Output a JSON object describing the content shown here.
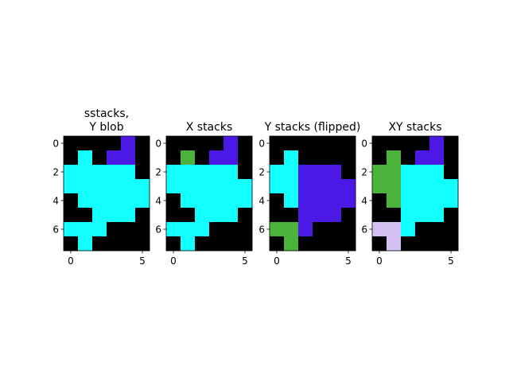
{
  "chart_data": [
    {
      "type": "heatmap",
      "title": "sstacks,\nY blob",
      "xticks": [
        0,
        5
      ],
      "yticks": [
        0,
        2,
        4,
        6
      ],
      "xlim": [
        -0.5,
        5.5
      ],
      "ylim": [
        7.5,
        -0.5
      ],
      "grid": [
        [
          0,
          0,
          0,
          0,
          2,
          0
        ],
        [
          0,
          1,
          0,
          2,
          2,
          0
        ],
        [
          1,
          1,
          1,
          1,
          1,
          0
        ],
        [
          1,
          1,
          1,
          1,
          1,
          1
        ],
        [
          0,
          1,
          1,
          1,
          1,
          1
        ],
        [
          0,
          0,
          1,
          1,
          1,
          0
        ],
        [
          1,
          1,
          1,
          0,
          0,
          0
        ],
        [
          0,
          1,
          0,
          0,
          0,
          0
        ]
      ]
    },
    {
      "type": "heatmap",
      "title": "X stacks",
      "xticks": [
        0,
        5
      ],
      "yticks": [
        0,
        2,
        4,
        6
      ],
      "xlim": [
        -0.5,
        5.5
      ],
      "ylim": [
        7.5,
        -0.5
      ],
      "grid": [
        [
          0,
          0,
          0,
          0,
          2,
          0
        ],
        [
          0,
          3,
          0,
          2,
          2,
          0
        ],
        [
          1,
          1,
          1,
          1,
          1,
          0
        ],
        [
          1,
          1,
          1,
          1,
          1,
          1
        ],
        [
          0,
          1,
          1,
          1,
          1,
          1
        ],
        [
          0,
          0,
          1,
          1,
          1,
          0
        ],
        [
          1,
          1,
          1,
          0,
          0,
          0
        ],
        [
          0,
          1,
          0,
          0,
          0,
          0
        ]
      ]
    },
    {
      "type": "heatmap",
      "title": "Y stacks (flipped)",
      "xticks": [
        0,
        5
      ],
      "yticks": [
        0,
        2,
        4,
        6
      ],
      "xlim": [
        -0.5,
        5.5
      ],
      "ylim": [
        7.5,
        -0.5
      ],
      "grid": [
        [
          0,
          0,
          0,
          0,
          0,
          0
        ],
        [
          0,
          1,
          0,
          0,
          0,
          0
        ],
        [
          1,
          1,
          2,
          2,
          2,
          0
        ],
        [
          1,
          1,
          2,
          2,
          2,
          2
        ],
        [
          0,
          1,
          2,
          2,
          2,
          2
        ],
        [
          0,
          0,
          2,
          2,
          2,
          0
        ],
        [
          3,
          3,
          2,
          0,
          0,
          0
        ],
        [
          0,
          3,
          0,
          0,
          0,
          0
        ]
      ]
    },
    {
      "type": "heatmap",
      "title": "XY stacks",
      "xticks": [
        0,
        5
      ],
      "yticks": [
        0,
        2,
        4,
        6
      ],
      "xlim": [
        -0.5,
        5.5
      ],
      "ylim": [
        7.5,
        -0.5
      ],
      "grid": [
        [
          0,
          0,
          0,
          0,
          2,
          0
        ],
        [
          0,
          3,
          0,
          2,
          2,
          0
        ],
        [
          3,
          3,
          1,
          1,
          1,
          0
        ],
        [
          3,
          3,
          1,
          1,
          1,
          1
        ],
        [
          0,
          3,
          1,
          1,
          1,
          1
        ],
        [
          0,
          0,
          1,
          1,
          1,
          0
        ],
        [
          4,
          4,
          1,
          0,
          0,
          0
        ],
        [
          0,
          4,
          0,
          0,
          0,
          0
        ]
      ]
    }
  ],
  "palette": [
    "#000000",
    "#11ffff",
    "#4b18e6",
    "#4bb33c",
    "#d6c1f5"
  ]
}
